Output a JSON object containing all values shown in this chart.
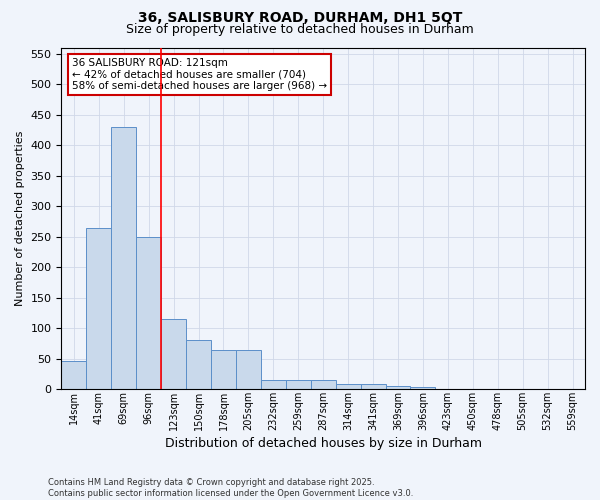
{
  "title_line1": "36, SALISBURY ROAD, DURHAM, DH1 5QT",
  "title_line2": "Size of property relative to detached houses in Durham",
  "xlabel": "Distribution of detached houses by size in Durham",
  "ylabel": "Number of detached properties",
  "bar_labels": [
    "14sqm",
    "41sqm",
    "69sqm",
    "96sqm",
    "123sqm",
    "150sqm",
    "178sqm",
    "205sqm",
    "232sqm",
    "259sqm",
    "287sqm",
    "314sqm",
    "341sqm",
    "369sqm",
    "396sqm",
    "423sqm",
    "450sqm",
    "478sqm",
    "505sqm",
    "532sqm",
    "559sqm"
  ],
  "bar_values": [
    47,
    265,
    430,
    250,
    115,
    80,
    65,
    65,
    15,
    15,
    15,
    8,
    8,
    5,
    3,
    1,
    0,
    0,
    0,
    0,
    0
  ],
  "bar_color": "#c9d9eb",
  "bar_edge_color": "#5b8fc9",
  "grid_color": "#d0d8e8",
  "background_color": "#f0f4fb",
  "red_line_index": 4,
  "annotation_line1": "36 SALISBURY ROAD: 121sqm",
  "annotation_line2": "← 42% of detached houses are smaller (704)",
  "annotation_line3": "58% of semi-detached houses are larger (968) →",
  "annotation_box_facecolor": "#ffffff",
  "annotation_box_edgecolor": "#cc0000",
  "ylim": [
    0,
    560
  ],
  "yticks": [
    0,
    50,
    100,
    150,
    200,
    250,
    300,
    350,
    400,
    450,
    500,
    550
  ],
  "footnote": "Contains HM Land Registry data © Crown copyright and database right 2025.\nContains public sector information licensed under the Open Government Licence v3.0."
}
